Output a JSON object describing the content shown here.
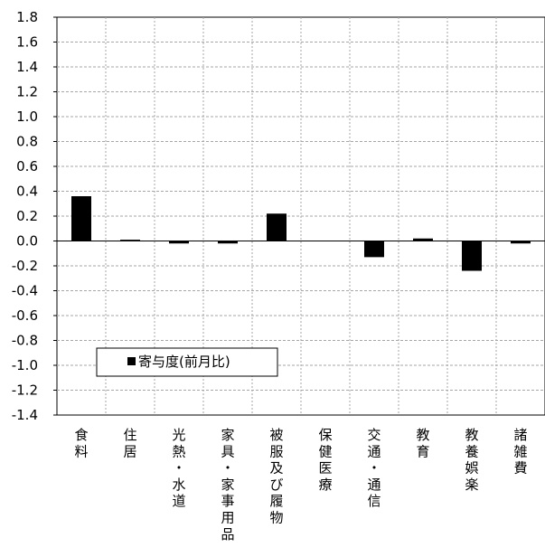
{
  "chart_data": {
    "type": "bar",
    "categories": [
      "食料",
      "住居",
      "光熱・水道",
      "家具・家事用品",
      "被服及び履物",
      "保健医療",
      "交通・通信",
      "教育",
      "教養娯楽",
      "諸雑費"
    ],
    "series": [
      {
        "name": "寄与度(前月比)",
        "values": [
          0.36,
          0.01,
          -0.02,
          -0.02,
          0.22,
          0.0,
          -0.13,
          0.02,
          -0.24,
          -0.02
        ]
      }
    ],
    "ylim": [
      -1.4,
      1.8
    ],
    "ytick_step": 0.2,
    "ytick_labels": [
      "1.8",
      "1.6",
      "1.4",
      "1.2",
      "1.0",
      "0.8",
      "0.6",
      "0.4",
      "0.2",
      "0.0",
      "-0.2",
      "-0.4",
      "-0.6",
      "-0.8",
      "-1.0",
      "-1.2",
      "-1.4"
    ],
    "grid": true,
    "legend_position": "lower-left",
    "bar_color": "#000000",
    "grid_color": "#a6a6a6"
  }
}
